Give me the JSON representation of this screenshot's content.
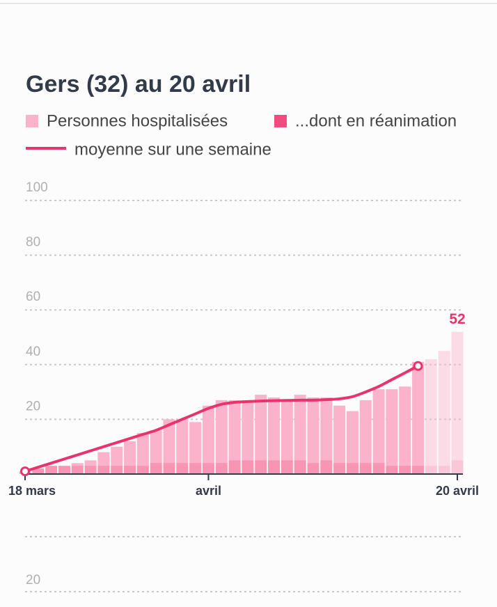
{
  "chart_data": [
    {
      "type": "bar",
      "title": "Gers (32) au 20 avril",
      "categories": [
        "18 mars",
        null,
        null,
        null,
        null,
        null,
        null,
        null,
        null,
        null,
        null,
        null,
        null,
        null,
        "avril",
        null,
        null,
        null,
        null,
        null,
        null,
        null,
        null,
        null,
        null,
        null,
        null,
        null,
        null,
        null,
        null,
        null,
        null,
        "20 avril"
      ],
      "series": [
        {
          "name": "Personnes hospitalisées",
          "color": "#fbb3cb",
          "values": [
            1,
            2,
            3,
            3,
            4,
            5,
            8,
            10,
            12,
            15,
            16,
            20,
            20,
            19,
            25,
            27,
            27,
            27,
            29,
            28,
            27,
            29,
            28,
            28,
            25,
            23,
            27,
            31,
            31,
            32,
            41,
            42,
            45,
            52
          ]
        },
        {
          "name": "...dont en réanimation",
          "color": "#f24b80",
          "values": [
            0,
            2,
            3,
            3,
            3,
            3,
            3,
            3,
            3,
            3,
            4,
            4,
            4,
            4,
            4,
            4,
            5,
            5,
            5,
            5,
            5,
            5,
            4,
            5,
            4,
            4,
            4,
            4,
            3,
            3,
            3,
            3,
            3,
            5
          ]
        },
        {
          "name": "moyenne sur une semaine",
          "color": "#e8336d",
          "type": "line",
          "values": [
            1,
            2.5,
            4,
            5.5,
            7,
            8.5,
            10,
            11.5,
            13,
            14.5,
            16,
            18,
            20,
            22,
            24,
            25.5,
            26.2,
            26.5,
            26.7,
            26.8,
            26.9,
            27,
            27,
            27.2,
            27.5,
            28.3,
            30,
            32,
            34.5,
            37,
            39.5,
            null,
            null,
            null
          ]
        }
      ],
      "ylim": [
        0,
        100
      ],
      "yticks": [
        20,
        40,
        60,
        80,
        100
      ],
      "grid": true
    },
    {
      "type": "bar",
      "yticks": [
        20
      ],
      "grid": true
    }
  ]
}
